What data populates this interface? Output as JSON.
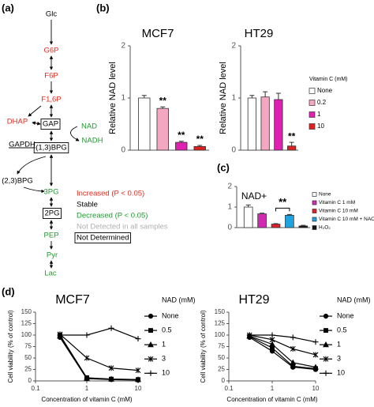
{
  "panel_labels": [
    "(a)",
    "(b)",
    "(c)",
    "(d)"
  ],
  "pathway": {
    "nodes": [
      {
        "label": "Glc",
        "color": "#000000"
      },
      {
        "label": "G6P",
        "color": "#e8291c"
      },
      {
        "label": "F6P",
        "color": "#e8291c"
      },
      {
        "label": "F1,6P",
        "color": "#e8291c"
      },
      {
        "label": "DHAP",
        "color": "#e8291c"
      },
      {
        "label": "GAP",
        "color": "#000000",
        "boxed": true
      },
      {
        "label": "GAPDH",
        "color": "#000000",
        "underline": true
      },
      {
        "label": "NAD",
        "color": "#1f9a2e"
      },
      {
        "label": "NADH",
        "color": "#1f9a2e"
      },
      {
        "label": "(1,3)BPG",
        "color": "#000000",
        "boxed": true
      },
      {
        "label": "(2,3)BPG",
        "color": "#000000"
      },
      {
        "label": "3PG",
        "color": "#1f9a2e"
      },
      {
        "label": "2PG",
        "color": "#000000",
        "boxed": true
      },
      {
        "label": "PEP",
        "color": "#1f9a2e"
      },
      {
        "label": "Pyr",
        "color": "#1f9a2e"
      },
      {
        "label": "Lac",
        "color": "#1f9a2e"
      }
    ],
    "legend": [
      {
        "text": "Increased (P < 0.05)",
        "color": "#e8291c"
      },
      {
        "text": "Stable",
        "color": "#000000"
      },
      {
        "text": "Decreased (P < 0.05)",
        "color": "#1f9a2e"
      },
      {
        "text": "Not Detected in all samples",
        "color": "#b0b0b0"
      },
      {
        "text": "Not Determined",
        "color": "#000000",
        "boxed": true
      }
    ]
  },
  "chart_data": [
    {
      "type": "bar",
      "title": "MCF7",
      "ylabel": "Relative NAD level",
      "ylim": [
        0,
        2
      ],
      "yticks": [
        0,
        1,
        2
      ],
      "values": [
        1.0,
        0.8,
        0.15,
        0.07
      ],
      "errors": [
        0.05,
        0.03,
        0.02,
        0.02
      ],
      "colors": [
        "#ffffff",
        "#f4a7c0",
        "#e020b0",
        "#e02020"
      ],
      "significance": [
        null,
        "**",
        "**",
        "**"
      ]
    },
    {
      "type": "bar",
      "title": "HT29",
      "ylabel": "Relative NAD level",
      "ylim": [
        0,
        2
      ],
      "yticks": [
        0,
        1,
        2
      ],
      "values": [
        1.0,
        1.02,
        0.97,
        0.08
      ],
      "errors": [
        0.05,
        0.1,
        0.12,
        0.07
      ],
      "colors": [
        "#ffffff",
        "#f4a7c0",
        "#e020b0",
        "#e02020"
      ],
      "significance": [
        null,
        null,
        null,
        "**"
      ],
      "legend_title": "Vitamin C (mM)",
      "categories": [
        "None",
        "0.2",
        "1",
        "10"
      ]
    },
    {
      "type": "bar",
      "title": "NAD+",
      "ylim": [
        0,
        2
      ],
      "yticks": [
        0,
        1,
        2
      ],
      "values": [
        1.0,
        0.67,
        0.17,
        0.6,
        0.08
      ],
      "errors": [
        0.1,
        0.03,
        0.02,
        0.04,
        0.03
      ],
      "colors": [
        "#ffffff",
        "#d02ab0",
        "#e0202a",
        "#1fa3e0",
        "#111111"
      ],
      "categories": [
        "None",
        "Vitamin C 1 mM",
        "Vitamin C 10 mM",
        "Vitamin C 10 mM + NAC",
        "H₂O₂"
      ],
      "bracket_label": "**"
    },
    {
      "type": "line",
      "title": "MCF7",
      "xlabel": "Concentration of vitamin C (mM)",
      "ylabel": "Cell viability (% of control)",
      "log_x": true,
      "x": [
        0.3,
        1,
        3,
        10
      ],
      "xlim": [
        0.1,
        10
      ],
      "xticks": [
        0.1,
        1,
        10
      ],
      "ylim": [
        0,
        150
      ],
      "yticks": [
        0,
        25,
        50,
        75,
        100,
        125,
        150
      ],
      "color": "#000000",
      "legend_title": "NAD (mM)",
      "series": [
        {
          "name": "None",
          "marker": "circle",
          "values": [
            95,
            5,
            3,
            2
          ]
        },
        {
          "name": "0.5",
          "marker": "square",
          "values": [
            100,
            7,
            4,
            3
          ]
        },
        {
          "name": "1",
          "marker": "triangle",
          "values": [
            98,
            6,
            4,
            3
          ]
        },
        {
          "name": "3",
          "marker": "star",
          "values": [
            102,
            50,
            28,
            23
          ]
        },
        {
          "name": "10",
          "marker": "cross",
          "values": [
            100,
            100,
            115,
            92
          ]
        }
      ]
    },
    {
      "type": "line",
      "title": "HT29",
      "xlabel": "Concentration of vitamin C (mM)",
      "ylabel": "Cell viability (% of control)",
      "log_x": true,
      "x": [
        0.3,
        1,
        3,
        10
      ],
      "xlim": [
        0.1,
        10
      ],
      "xticks": [
        0.1,
        1,
        10
      ],
      "ylim": [
        0,
        150
      ],
      "yticks": [
        0,
        25,
        50,
        75,
        100,
        125,
        150
      ],
      "color": "#000000",
      "legend_title": "NAD (mM)",
      "series": [
        {
          "name": "None",
          "marker": "circle",
          "values": [
            95,
            65,
            30,
            25
          ]
        },
        {
          "name": "0.5",
          "marker": "square",
          "values": [
            97,
            72,
            32,
            27
          ]
        },
        {
          "name": "1",
          "marker": "triangle",
          "values": [
            98,
            80,
            40,
            30
          ]
        },
        {
          "name": "3",
          "marker": "star",
          "values": [
            100,
            90,
            70,
            57
          ]
        },
        {
          "name": "10",
          "marker": "cross",
          "values": [
            100,
            100,
            95,
            85
          ]
        }
      ]
    }
  ]
}
